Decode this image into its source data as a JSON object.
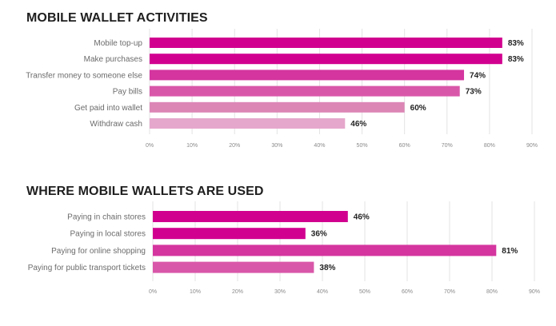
{
  "chart_data": [
    {
      "type": "bar",
      "orientation": "horizontal",
      "title": "MOBILE WALLET ACTIVITIES",
      "categories": [
        "Mobile top-up",
        "Make purchases",
        "Transfer money to someone else",
        "Pay bills",
        "Get paid into wallet",
        "Withdraw cash"
      ],
      "values": [
        83,
        83,
        74,
        73,
        60,
        46
      ],
      "value_labels": [
        "83%",
        "83%",
        "74%",
        "73%",
        "60%",
        "46%"
      ],
      "colors": [
        "#d1008f",
        "#d1008f",
        "#d4359f",
        "#d957a9",
        "#dc86b6",
        "#e5a7cc"
      ],
      "xlim": [
        0,
        90
      ],
      "ticks": [
        "0%",
        "10%",
        "20%",
        "30%",
        "40%",
        "50%",
        "60%",
        "70%",
        "80%",
        "90%"
      ],
      "grid": true
    },
    {
      "type": "bar",
      "orientation": "horizontal",
      "title": "WHERE MOBILE WALLETS ARE USED",
      "categories": [
        "Paying in chain stores",
        "Paying in local stores",
        "Paying for online shopping",
        "Paying for public transport tickets"
      ],
      "values": [
        46,
        36,
        81,
        38
      ],
      "value_labels": [
        "46%",
        "36%",
        "81%",
        "38%"
      ],
      "colors": [
        "#d1008f",
        "#d1008f",
        "#d4359f",
        "#d957a9"
      ],
      "xlim": [
        0,
        90
      ],
      "ticks": [
        "0%",
        "10%",
        "20%",
        "30%",
        "40%",
        "50%",
        "60%",
        "70%",
        "80%",
        "90%"
      ],
      "grid": true
    }
  ]
}
